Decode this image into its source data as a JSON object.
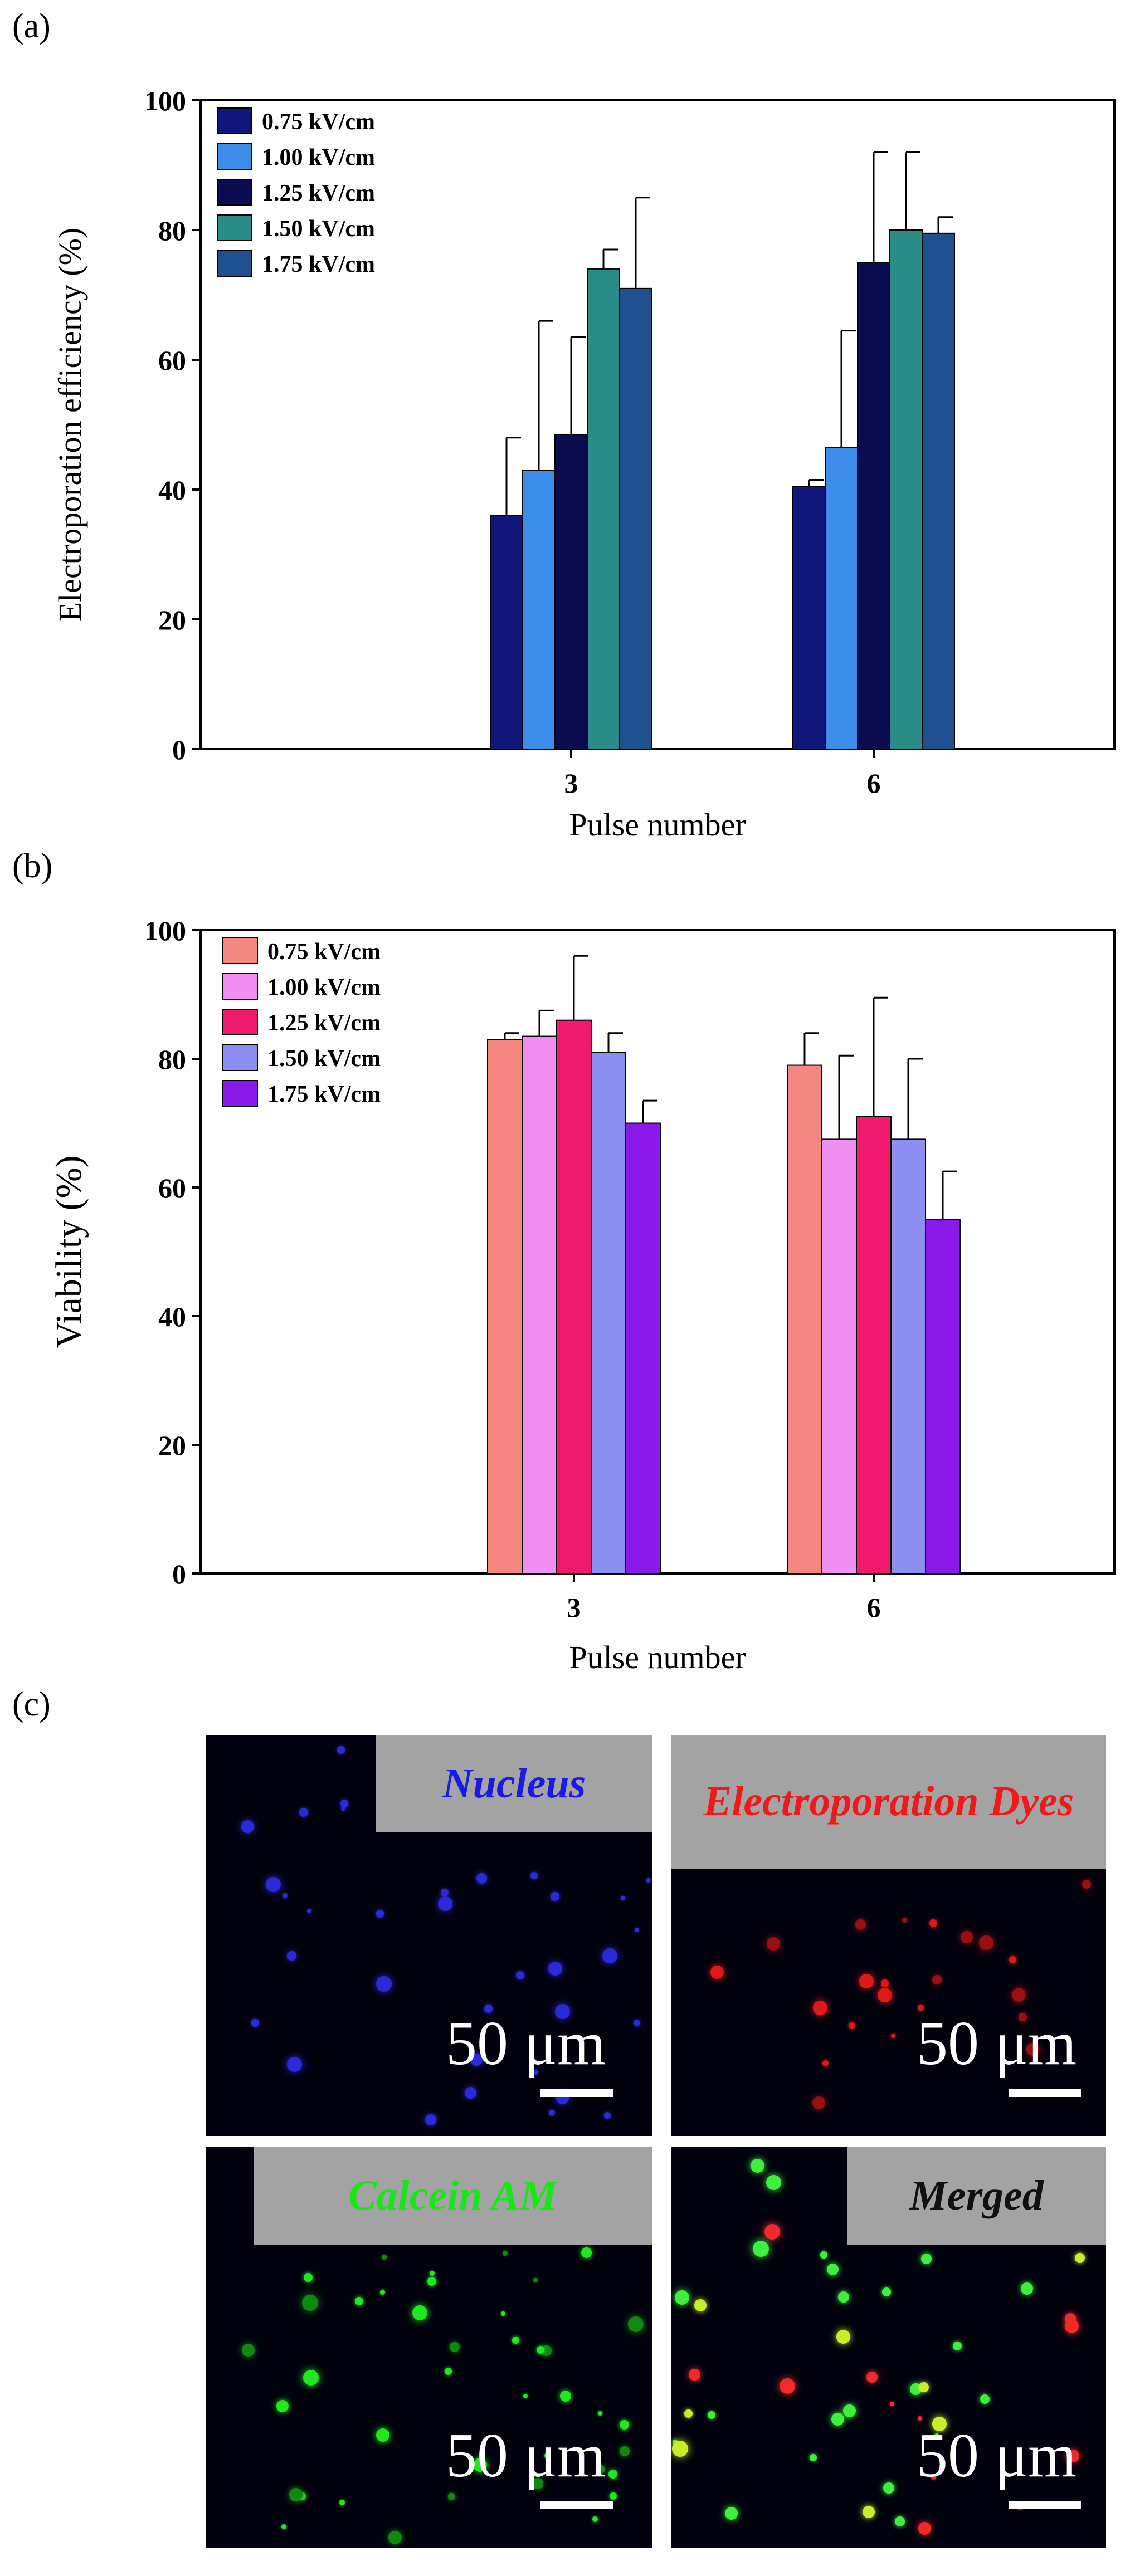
{
  "figure": {
    "panel_a_label": "(a)",
    "panel_b_label": "(b)",
    "panel_c_label": "(c)"
  },
  "chart_data": [
    {
      "id": "a",
      "type": "bar",
      "categories": [
        "3",
        "6"
      ],
      "series": [
        {
          "name": "0.75 kV/cm",
          "color": "#10167a",
          "values": [
            36,
            40.5
          ],
          "errors": [
            12,
            1
          ]
        },
        {
          "name": "1.00 kV/cm",
          "color": "#3c8ee8",
          "values": [
            43,
            46.5
          ],
          "errors": [
            23,
            18
          ]
        },
        {
          "name": "1.25 kV/cm",
          "color": "#0b0b50",
          "values": [
            48.5,
            75
          ],
          "errors": [
            15,
            17
          ]
        },
        {
          "name": "1.50 kV/cm",
          "color": "#2a8c86",
          "values": [
            74,
            80
          ],
          "errors": [
            3,
            12
          ]
        },
        {
          "name": "1.75 kV/cm",
          "color": "#1f4f8e",
          "values": [
            71,
            79.5
          ],
          "errors": [
            14,
            2.5
          ]
        }
      ],
      "title": "",
      "xlabel": "Pulse number",
      "ylabel": "Electroporation efficiency (%)",
      "ylim": [
        0,
        100
      ],
      "yticks": [
        "0",
        "20",
        "40",
        "60",
        "80",
        "100"
      ],
      "legend_position": "top-left"
    },
    {
      "id": "b",
      "type": "bar",
      "categories": [
        "3",
        "6"
      ],
      "series": [
        {
          "name": "0.75 kV/cm",
          "color": "#f4877f",
          "values": [
            83,
            79
          ],
          "errors": [
            1,
            5
          ]
        },
        {
          "name": "1.00 kV/cm",
          "color": "#f28df2",
          "values": [
            83.5,
            67.5
          ],
          "errors": [
            4,
            13
          ]
        },
        {
          "name": "1.25 kV/cm",
          "color": "#ee1a6e",
          "values": [
            86,
            71
          ],
          "errors": [
            10,
            18.5
          ]
        },
        {
          "name": "1.50 kV/cm",
          "color": "#8c8ef2",
          "values": [
            81,
            67.5
          ],
          "errors": [
            3,
            12.5
          ]
        },
        {
          "name": "1.75 kV/cm",
          "color": "#8a1ae8",
          "values": [
            70,
            55
          ],
          "errors": [
            3.5,
            7.5
          ]
        }
      ],
      "title": "",
      "xlabel": "Pulse number",
      "ylabel": "Viability (%)",
      "ylim": [
        0,
        100
      ],
      "yticks": [
        "0",
        "20",
        "40",
        "60",
        "80",
        "100"
      ],
      "legend_position": "top-left"
    }
  ],
  "micrographs": [
    {
      "label": "Nucleus",
      "label_color": "#1a1ae6",
      "scale": "50 μm",
      "stain": "blue"
    },
    {
      "label": "Electroporation Dyes",
      "label_color": "#f01818",
      "scale": "50 μm",
      "stain": "red"
    },
    {
      "label": "Calcein AM",
      "label_color": "#19e619",
      "scale": "50 μm",
      "stain": "green"
    },
    {
      "label": "Merged",
      "label_color": "#111111",
      "scale": "50 μm",
      "stain": "merged"
    }
  ]
}
